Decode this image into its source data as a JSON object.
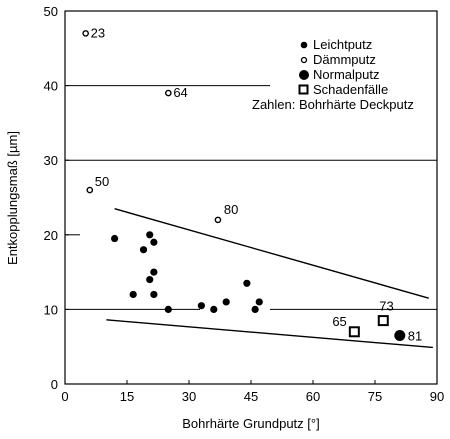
{
  "chart_data": {
    "type": "scatter",
    "title": "",
    "xlabel": "Bohrhärte Grundputz [°]",
    "ylabel": "Entkopplungsmaß [µm]",
    "xlim": [
      0,
      90
    ],
    "ylim": [
      0,
      50
    ],
    "xticks": [
      "0",
      "15",
      "30",
      "45",
      "60",
      "75",
      "90"
    ],
    "yticks": [
      "0",
      "10",
      "20",
      "30",
      "40",
      "50"
    ],
    "grid": "horizontal at 10, 20, 30, 40",
    "legend_position": "top-right",
    "legend_note": "Zahlen: Bohrhärte Deckputz",
    "series": [
      {
        "name": "Leichtputz",
        "marker": "filled-small",
        "points": [
          {
            "x": 12,
            "y": 19.5
          },
          {
            "x": 16.5,
            "y": 12
          },
          {
            "x": 19,
            "y": 18
          },
          {
            "x": 20.5,
            "y": 20
          },
          {
            "x": 20.5,
            "y": 14
          },
          {
            "x": 21.5,
            "y": 15
          },
          {
            "x": 21.5,
            "y": 12
          },
          {
            "x": 21.5,
            "y": 19
          },
          {
            "x": 25,
            "y": 10
          },
          {
            "x": 33,
            "y": 10.5
          },
          {
            "x": 36,
            "y": 10
          },
          {
            "x": 39,
            "y": 11
          },
          {
            "x": 44,
            "y": 13.5
          },
          {
            "x": 46,
            "y": 10
          },
          {
            "x": 47,
            "y": 11
          }
        ]
      },
      {
        "name": "Dämmputz",
        "marker": "open-small",
        "points": [
          {
            "x": 5,
            "y": 47,
            "label": "23"
          },
          {
            "x": 25,
            "y": 39,
            "label": "64"
          },
          {
            "x": 6,
            "y": 26,
            "label": "50"
          },
          {
            "x": 37,
            "y": 22,
            "label": "80"
          }
        ]
      },
      {
        "name": "Normalputz",
        "marker": "filled-large",
        "points": [
          {
            "x": 81,
            "y": 6.5,
            "label": "81"
          }
        ]
      },
      {
        "name": "Schadenfälle",
        "marker": "open-square",
        "points": [
          {
            "x": 70,
            "y": 7,
            "label": "65"
          },
          {
            "x": 77,
            "y": 8.5,
            "label": "73"
          }
        ]
      }
    ],
    "lines": [
      {
        "from": [
          12,
          23.5
        ],
        "to": [
          88,
          11.5
        ]
      },
      {
        "from": [
          10,
          8.6
        ],
        "to": [
          89,
          4.9
        ]
      }
    ]
  }
}
